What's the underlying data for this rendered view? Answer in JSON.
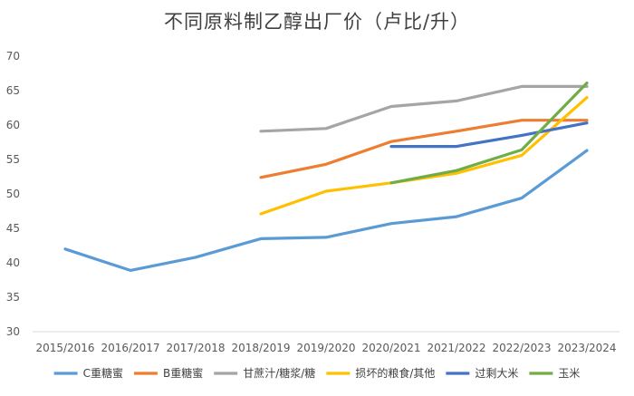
{
  "chart_data": {
    "type": "line",
    "title": "不同原料制乙醇出厂价（卢比/升）",
    "xlabel": "",
    "ylabel": "",
    "categories": [
      "2015/2016",
      "2016/2017",
      "2017/2018",
      "2018/2019",
      "2019/2020",
      "2020/2021",
      "2021/2022",
      "2022/2023",
      "2023/2024"
    ],
    "ylim": [
      30,
      70
    ],
    "yticks": [
      30,
      35,
      40,
      45,
      50,
      55,
      60,
      65,
      70
    ],
    "grid": false,
    "legend_position": "bottom",
    "series": [
      {
        "name": "C重糖蜜",
        "color": "#5B9BD5",
        "values": [
          42.0,
          38.9,
          40.8,
          43.5,
          43.7,
          45.7,
          46.7,
          49.4,
          56.3
        ]
      },
      {
        "name": "B重糖蜜",
        "color": "#ED7D31",
        "values": [
          null,
          null,
          null,
          52.4,
          54.3,
          57.6,
          59.1,
          60.7,
          60.7
        ]
      },
      {
        "name": "甘蔗汁/糖浆/糖",
        "color": "#A5A5A5",
        "values": [
          null,
          null,
          null,
          59.1,
          59.5,
          62.7,
          63.5,
          65.6,
          65.6
        ]
      },
      {
        "name": "损坏的粮食/其他",
        "color": "#FFC000",
        "values": [
          null,
          null,
          null,
          47.1,
          50.4,
          51.6,
          53.0,
          55.6,
          64.0
        ]
      },
      {
        "name": "过剩大米",
        "color": "#4472C4",
        "values": [
          null,
          null,
          null,
          null,
          null,
          56.9,
          56.9,
          58.5,
          60.3
        ]
      },
      {
        "name": "玉米",
        "color": "#70AD47",
        "values": [
          null,
          null,
          null,
          null,
          null,
          51.6,
          53.4,
          56.4,
          66.1
        ]
      }
    ]
  }
}
